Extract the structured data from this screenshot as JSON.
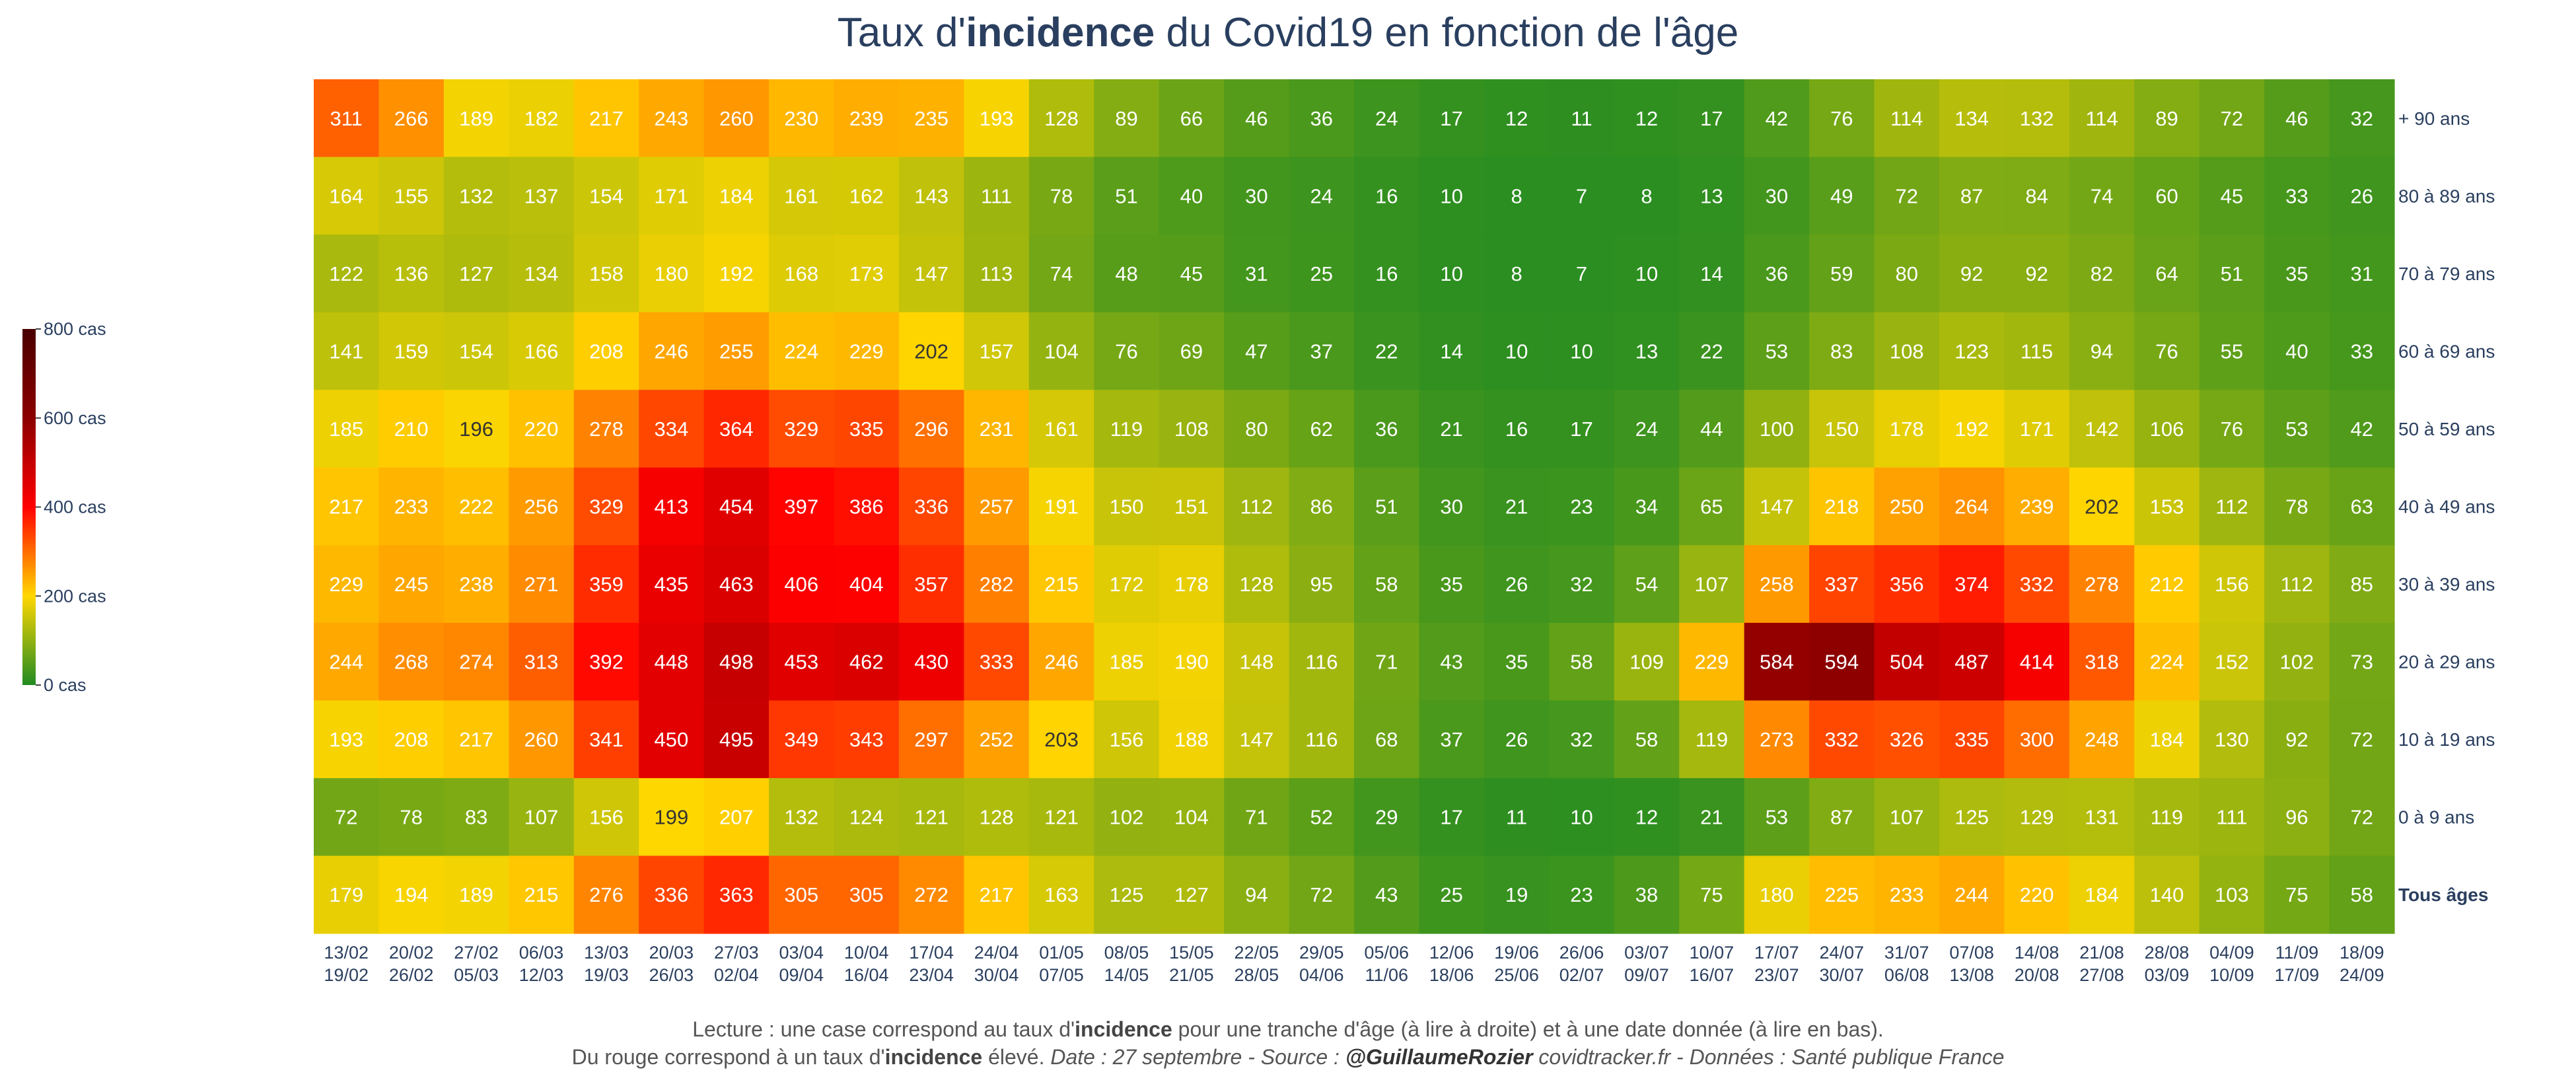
{
  "chart_data": {
    "type": "heatmap",
    "title_parts": [
      "Taux d'",
      "incidence",
      " du Covid19 en fonction de l'âge"
    ],
    "rows": [
      "+ 90 ans",
      "80 à 89 ans",
      "70 à 79 ans",
      "60 à 69 ans",
      "50 à 59 ans",
      "40 à 49 ans",
      "30 à 39 ans",
      "20 à 29 ans",
      "10 à 19 ans",
      "0 à 9 ans",
      "Tous âges"
    ],
    "columns_start": [
      "13/02",
      "20/02",
      "27/02",
      "06/03",
      "13/03",
      "20/03",
      "27/03",
      "03/04",
      "10/04",
      "17/04",
      "24/04",
      "01/05",
      "08/05",
      "15/05",
      "22/05",
      "29/05",
      "05/06",
      "12/06",
      "19/06",
      "26/06",
      "03/07",
      "10/07",
      "17/07",
      "24/07",
      "31/07",
      "07/08",
      "14/08",
      "21/08",
      "28/08",
      "04/09",
      "11/09",
      "18/09"
    ],
    "columns_end": [
      "19/02",
      "26/02",
      "05/03",
      "12/03",
      "19/03",
      "26/03",
      "02/04",
      "09/04",
      "16/04",
      "23/04",
      "30/04",
      "07/05",
      "14/05",
      "21/05",
      "28/05",
      "04/06",
      "11/06",
      "18/06",
      "25/06",
      "02/07",
      "09/07",
      "16/07",
      "23/07",
      "30/07",
      "06/08",
      "13/08",
      "20/08",
      "27/08",
      "03/09",
      "10/09",
      "17/09",
      "24/09"
    ],
    "values": [
      [
        311,
        266,
        189,
        182,
        217,
        243,
        260,
        230,
        239,
        235,
        193,
        128,
        89,
        66,
        46,
        36,
        24,
        17,
        12,
        11,
        12,
        17,
        42,
        76,
        114,
        134,
        132,
        114,
        89,
        72,
        46,
        32
      ],
      [
        164,
        155,
        132,
        137,
        154,
        171,
        184,
        161,
        162,
        143,
        111,
        78,
        51,
        40,
        30,
        24,
        16,
        10,
        8,
        7,
        8,
        13,
        30,
        49,
        72,
        87,
        84,
        74,
        60,
        45,
        33,
        26
      ],
      [
        122,
        136,
        127,
        134,
        158,
        180,
        192,
        168,
        173,
        147,
        113,
        74,
        48,
        45,
        31,
        25,
        16,
        10,
        8,
        7,
        10,
        14,
        36,
        59,
        80,
        92,
        92,
        82,
        64,
        51,
        35,
        31
      ],
      [
        141,
        159,
        154,
        166,
        208,
        246,
        255,
        224,
        229,
        202,
        157,
        104,
        76,
        69,
        47,
        37,
        22,
        14,
        10,
        10,
        13,
        22,
        53,
        83,
        108,
        123,
        115,
        94,
        76,
        55,
        40,
        33
      ],
      [
        185,
        210,
        196,
        220,
        278,
        334,
        364,
        329,
        335,
        296,
        231,
        161,
        119,
        108,
        80,
        62,
        36,
        21,
        16,
        17,
        24,
        44,
        100,
        150,
        178,
        192,
        171,
        142,
        106,
        76,
        53,
        42
      ],
      [
        217,
        233,
        222,
        256,
        329,
        413,
        454,
        397,
        386,
        336,
        257,
        191,
        150,
        151,
        112,
        86,
        51,
        30,
        21,
        23,
        34,
        65,
        147,
        218,
        250,
        264,
        239,
        202,
        153,
        112,
        78,
        63
      ],
      [
        229,
        245,
        238,
        271,
        359,
        435,
        463,
        406,
        404,
        357,
        282,
        215,
        172,
        178,
        128,
        95,
        58,
        35,
        26,
        32,
        54,
        107,
        258,
        337,
        356,
        374,
        332,
        278,
        212,
        156,
        112,
        85
      ],
      [
        244,
        268,
        274,
        313,
        392,
        448,
        498,
        453,
        462,
        430,
        333,
        246,
        185,
        190,
        148,
        116,
        71,
        43,
        35,
        58,
        109,
        229,
        584,
        594,
        504,
        487,
        414,
        318,
        224,
        152,
        102,
        73
      ],
      [
        193,
        208,
        217,
        260,
        341,
        450,
        495,
        349,
        343,
        297,
        252,
        203,
        156,
        188,
        147,
        116,
        68,
        37,
        26,
        32,
        58,
        119,
        273,
        332,
        326,
        335,
        300,
        248,
        184,
        130,
        92,
        72
      ],
      [
        72,
        78,
        83,
        107,
        156,
        199,
        207,
        132,
        124,
        121,
        128,
        121,
        102,
        104,
        71,
        52,
        29,
        17,
        11,
        10,
        12,
        21,
        53,
        87,
        107,
        125,
        129,
        131,
        119,
        111,
        96,
        72
      ],
      [
        179,
        194,
        189,
        215,
        276,
        336,
        363,
        305,
        305,
        272,
        217,
        163,
        125,
        127,
        94,
        72,
        43,
        25,
        19,
        23,
        38,
        75,
        180,
        225,
        233,
        244,
        220,
        184,
        140,
        103,
        75,
        58
      ]
    ],
    "zlim": [
      0,
      800
    ],
    "colorbar_ticks": [
      {
        "value": 0,
        "label": "0 cas"
      },
      {
        "value": 200,
        "label": "200 cas"
      },
      {
        "value": 400,
        "label": "400 cas"
      },
      {
        "value": 600,
        "label": "600 cas"
      },
      {
        "value": 800,
        "label": "800 cas"
      }
    ],
    "colorscale": [
      "#228b22",
      "#ffd700",
      "#ff0000",
      "#8b0000",
      "#4a0000"
    ],
    "bold_row": "Tous âges"
  },
  "caption": {
    "line1_parts": [
      "Lecture : une case correspond au taux d'",
      "incidence",
      " pour une tranche d'âge (à lire à droite) et à une date donnée (à lire en bas)."
    ],
    "line2_parts": [
      "Du rouge correspond à un taux d'",
      "incidence",
      " élevé. ",
      "Date : 27 septembre - Source : ",
      "@GuillaumeRozier",
      " covidtracker.fr - Données : Santé publique France"
    ]
  }
}
